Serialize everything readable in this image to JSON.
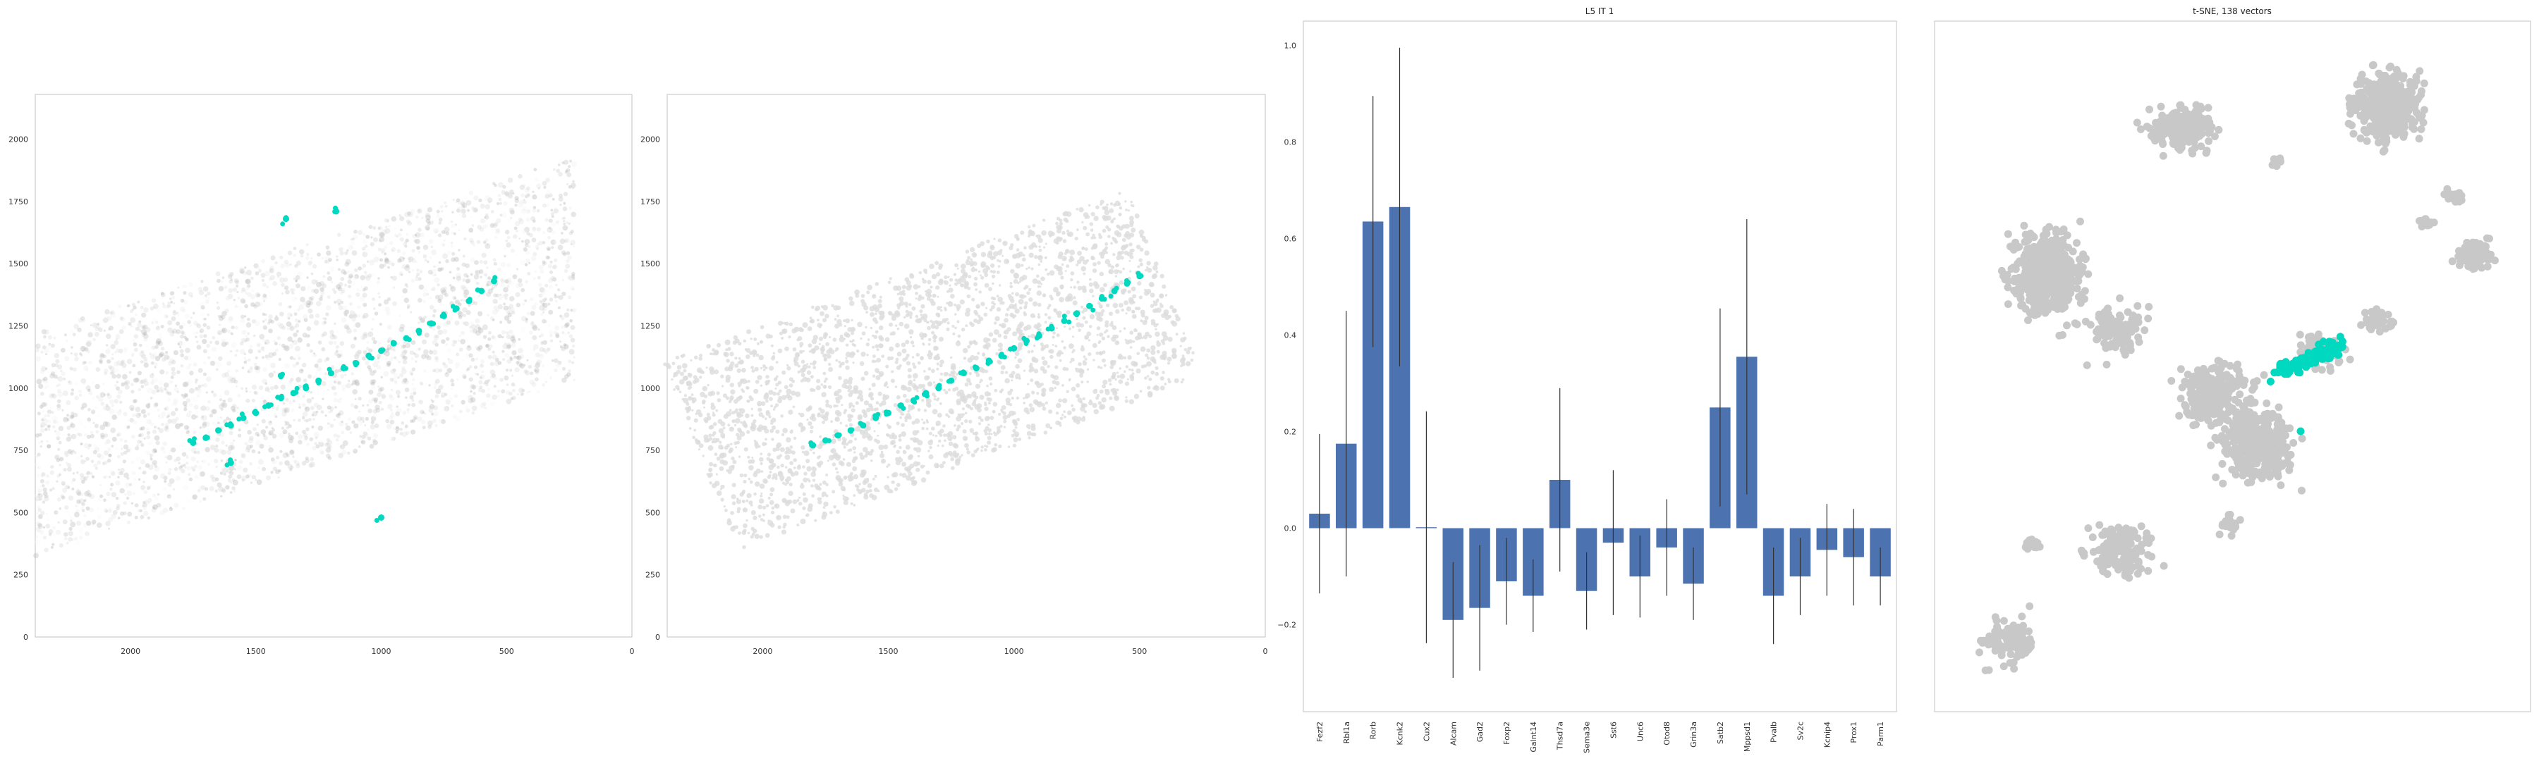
{
  "colors": {
    "highlight": "#00d8c0",
    "background_cells": "#c8c8c8",
    "bar": "#4c72b0",
    "errorbar": "#333333",
    "frame": "#cccccc"
  },
  "chart_data": [
    {
      "type": "scatter",
      "title": "",
      "xticks": [
        "2000",
        "1500",
        "1000",
        "500",
        "0"
      ],
      "yticks": [
        "0",
        "250",
        "500",
        "750",
        "1000",
        "1250",
        "1500",
        "1750",
        "2000"
      ],
      "xlim": [
        2380,
        0
      ],
      "ylim": [
        2180,
        0
      ],
      "highlight_series": {
        "x": [
          1750,
          1700,
          1650,
          1600,
          1550,
          1500,
          1450,
          1400,
          1350,
          1300,
          1250,
          1200,
          1150,
          1100,
          1050,
          1000,
          950,
          900,
          850,
          800,
          750,
          700,
          650,
          600,
          550,
          1600,
          1380,
          1180,
          1000,
          1400
        ],
        "y": [
          780,
          800,
          830,
          850,
          880,
          900,
          930,
          960,
          980,
          1000,
          1030,
          1060,
          1080,
          1100,
          1130,
          1150,
          1180,
          1200,
          1230,
          1260,
          1290,
          1320,
          1350,
          1390,
          1430,
          700,
          1680,
          1710,
          480,
          1050
        ]
      }
    },
    {
      "type": "scatter",
      "title": "",
      "xticks": [
        "2000",
        "1500",
        "1000",
        "500",
        "0"
      ],
      "yticks": [
        "0",
        "250",
        "500",
        "750",
        "1000",
        "1250",
        "1500",
        "1750",
        "2000"
      ],
      "xlim": [
        2380,
        0
      ],
      "ylim": [
        2180,
        0
      ],
      "highlight_series": {
        "x": [
          1800,
          1750,
          1700,
          1650,
          1600,
          1550,
          1500,
          1450,
          1400,
          1350,
          1300,
          1250,
          1200,
          1150,
          1100,
          1050,
          1000,
          950,
          900,
          850,
          800,
          750,
          700,
          650,
          600,
          550,
          500
        ],
        "y": [
          770,
          790,
          810,
          830,
          850,
          880,
          900,
          930,
          950,
          980,
          1000,
          1030,
          1060,
          1080,
          1110,
          1130,
          1160,
          1190,
          1210,
          1240,
          1270,
          1300,
          1330,
          1360,
          1390,
          1420,
          1450
        ]
      }
    },
    {
      "type": "bar",
      "title": "L5 IT 1",
      "categories": [
        "Fezf2",
        "Rbl1a",
        "Rorb",
        "Kcnk2",
        "Cux2",
        "Alcam",
        "Gad2",
        "Foxp2",
        "Galnt14",
        "Thsd7a",
        "Sema3e",
        "Sst6",
        "Unc6",
        "Otod8",
        "Grin3a",
        "Satb2",
        "Mppsd1",
        "Pvalb",
        "Sv2c",
        "Kcnip4",
        "Prox1",
        "Parm1"
      ],
      "values": [
        0.03,
        0.175,
        0.635,
        0.665,
        0.002,
        -0.19,
        -0.165,
        -0.11,
        -0.14,
        0.1,
        -0.13,
        -0.03,
        -0.1,
        -0.04,
        -0.115,
        0.25,
        0.355,
        -0.14,
        -0.1,
        -0.045,
        -0.06,
        -0.1
      ],
      "errors": [
        0.165,
        0.275,
        0.26,
        0.33,
        0.24,
        0.12,
        0.13,
        0.09,
        0.075,
        0.19,
        0.08,
        0.15,
        0.085,
        0.1,
        0.075,
        0.205,
        0.285,
        0.1,
        0.08,
        0.095,
        0.1,
        0.06
      ],
      "yticks": [
        "1.0",
        "0.8",
        "0.6",
        "0.4",
        "0.2",
        "0.0",
        "−0.2"
      ],
      "ylim": [
        -0.38,
        1.05
      ]
    },
    {
      "type": "scatter",
      "title": "t-SNE, 138 vectors"
    }
  ]
}
